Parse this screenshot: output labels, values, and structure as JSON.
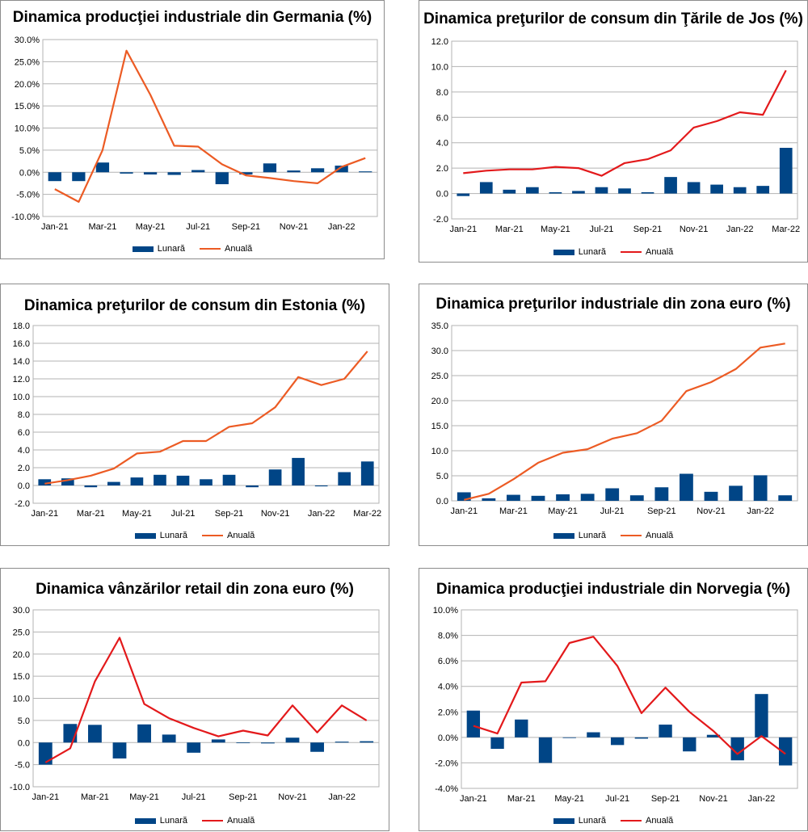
{
  "chart_data": [
    {
      "type": "bar+line",
      "title": "Dinamica producţiei industriale din Germania (%)",
      "percent": true,
      "ylim": [
        -10,
        30
      ],
      "ystep": 5,
      "ytick_decimals": 1,
      "categories": [
        "Jan-21",
        "Feb-21",
        "Mar-21",
        "Apr-21",
        "May-21",
        "Jun-21",
        "Jul-21",
        "Aug-21",
        "Sep-21",
        "Oct-21",
        "Nov-21",
        "Dec-21",
        "Jan-22",
        "Feb-22"
      ],
      "xtick_labels": [
        "Jan-21",
        "Mar-21",
        "May-21",
        "Jul-21",
        "Sep-21",
        "Nov-21",
        "Jan-22"
      ],
      "series": [
        {
          "name": "Lunară",
          "kind": "bar",
          "color": "#004586",
          "values": [
            -2.0,
            -2.0,
            2.2,
            -0.3,
            -0.5,
            -0.6,
            0.5,
            -2.7,
            -0.5,
            2.0,
            0.4,
            0.9,
            1.5,
            0.2
          ]
        },
        {
          "name": "Anuală",
          "kind": "line",
          "color": "#ec5b24",
          "values": [
            -3.8,
            -6.7,
            5.0,
            27.5,
            17.5,
            6.0,
            5.8,
            1.8,
            -0.7,
            -1.3,
            -2.0,
            -2.5,
            1.2,
            3.2
          ]
        }
      ]
    },
    {
      "type": "bar+line",
      "title": "Dinamica preţurilor de consum din Ţările de Jos (%)",
      "percent": false,
      "ylim": [
        -2,
        12
      ],
      "ystep": 2,
      "ytick_decimals": 1,
      "categories": [
        "Jan-21",
        "Feb-21",
        "Mar-21",
        "Apr-21",
        "May-21",
        "Jun-21",
        "Jul-21",
        "Aug-21",
        "Sep-21",
        "Oct-21",
        "Nov-21",
        "Dec-21",
        "Jan-22",
        "Feb-22",
        "Mar-22"
      ],
      "xtick_labels": [
        "Jan-21",
        "Mar-21",
        "May-21",
        "Jul-21",
        "Sep-21",
        "Nov-21",
        "Jan-22",
        "Mar-22"
      ],
      "series": [
        {
          "name": "Lunară",
          "kind": "bar",
          "color": "#004586",
          "values": [
            -0.2,
            0.9,
            0.3,
            0.5,
            0.1,
            0.2,
            0.5,
            0.4,
            0.1,
            1.3,
            0.9,
            0.7,
            0.5,
            0.6,
            3.6
          ]
        },
        {
          "name": "Anuală",
          "kind": "line",
          "color": "#e3191b",
          "values": [
            1.6,
            1.8,
            1.9,
            1.9,
            2.1,
            2.0,
            1.4,
            2.4,
            2.7,
            3.4,
            5.2,
            5.7,
            6.4,
            6.2,
            9.7
          ]
        }
      ]
    },
    {
      "type": "bar+line",
      "title": "Dinamica preţurilor de consum din Estonia (%)",
      "percent": false,
      "ylim": [
        -2,
        18
      ],
      "ystep": 2,
      "ytick_decimals": 1,
      "categories": [
        "Jan-21",
        "Feb-21",
        "Mar-21",
        "Apr-21",
        "May-21",
        "Jun-21",
        "Jul-21",
        "Aug-21",
        "Sep-21",
        "Oct-21",
        "Nov-21",
        "Dec-21",
        "Jan-22",
        "Feb-22",
        "Mar-22"
      ],
      "xtick_labels": [
        "Jan-21",
        "Mar-21",
        "May-21",
        "Jul-21",
        "Sep-21",
        "Nov-21",
        "Jan-22",
        "Mar-22"
      ],
      "series": [
        {
          "name": "Lunară",
          "kind": "bar",
          "color": "#004586",
          "values": [
            0.7,
            0.8,
            -0.2,
            0.4,
            0.9,
            1.2,
            1.1,
            0.7,
            1.2,
            -0.2,
            1.8,
            3.1,
            -0.1,
            1.5,
            2.7
          ]
        },
        {
          "name": "Anuală",
          "kind": "line",
          "color": "#ec5b24",
          "values": [
            0.2,
            0.6,
            1.1,
            1.9,
            3.6,
            3.8,
            5.0,
            5.0,
            6.6,
            7.0,
            8.8,
            12.2,
            11.3,
            12.0,
            15.1
          ]
        }
      ]
    },
    {
      "type": "bar+line",
      "title": "Dinamica preţurilor industriale din zona euro (%)",
      "percent": false,
      "ylim": [
        0,
        35
      ],
      "ystep": 5,
      "ytick_decimals": 1,
      "categories": [
        "Jan-21",
        "Feb-21",
        "Mar-21",
        "Apr-21",
        "May-21",
        "Jun-21",
        "Jul-21",
        "Aug-21",
        "Sep-21",
        "Oct-21",
        "Nov-21",
        "Dec-21",
        "Jan-22",
        "Feb-22"
      ],
      "xtick_labels": [
        "Jan-21",
        "Mar-21",
        "May-21",
        "Jul-21",
        "Sep-21",
        "Nov-21",
        "Jan-22"
      ],
      "series": [
        {
          "name": "Lunară",
          "kind": "bar",
          "color": "#004586",
          "values": [
            1.7,
            0.5,
            1.2,
            1.0,
            1.3,
            1.4,
            2.5,
            1.1,
            2.7,
            5.4,
            1.8,
            3.0,
            5.1,
            1.1
          ]
        },
        {
          "name": "Anuală",
          "kind": "line",
          "color": "#ec5b24",
          "values": [
            0.2,
            1.4,
            4.3,
            7.6,
            9.6,
            10.3,
            12.4,
            13.5,
            16.0,
            21.9,
            23.7,
            26.3,
            30.6,
            31.4
          ]
        }
      ]
    },
    {
      "type": "bar+line",
      "title": "Dinamica vânzărilor retail din zona euro (%)",
      "percent": false,
      "ylim": [
        -10,
        30
      ],
      "ystep": 5,
      "ytick_decimals": 1,
      "categories": [
        "Jan-21",
        "Feb-21",
        "Mar-21",
        "Apr-21",
        "May-21",
        "Jun-21",
        "Jul-21",
        "Aug-21",
        "Sep-21",
        "Oct-21",
        "Nov-21",
        "Dec-21",
        "Jan-22",
        "Feb-22"
      ],
      "xtick_labels": [
        "Jan-21",
        "Mar-21",
        "May-21",
        "Jul-21",
        "Sep-21",
        "Nov-21",
        "Jan-22"
      ],
      "series": [
        {
          "name": "Lunară",
          "kind": "bar",
          "color": "#004586",
          "values": [
            -5.0,
            4.2,
            4.0,
            -3.6,
            4.1,
            1.8,
            -2.3,
            0.7,
            -0.1,
            -0.2,
            1.1,
            -2.1,
            0.2,
            0.3
          ]
        },
        {
          "name": "Anuală",
          "kind": "line",
          "color": "#e3191b",
          "values": [
            -4.5,
            -1.3,
            13.8,
            23.7,
            8.7,
            5.5,
            3.3,
            1.4,
            2.7,
            1.6,
            8.4,
            2.3,
            8.4,
            5.0
          ]
        }
      ]
    },
    {
      "type": "bar+line",
      "title": "Dinamica producţiei industriale din Norvegia (%)",
      "percent": true,
      "ylim": [
        -4,
        10
      ],
      "ystep": 2,
      "ytick_decimals": 1,
      "categories": [
        "Jan-21",
        "Feb-21",
        "Mar-21",
        "Apr-21",
        "May-21",
        "Jun-21",
        "Jul-21",
        "Aug-21",
        "Sep-21",
        "Oct-21",
        "Nov-21",
        "Dec-21",
        "Jan-22",
        "Feb-22"
      ],
      "xtick_labels": [
        "Jan-21",
        "Mar-21",
        "May-21",
        "Jul-21",
        "Sep-21",
        "Nov-21",
        "Jan-22"
      ],
      "series": [
        {
          "name": "Lunară",
          "kind": "bar",
          "color": "#004586",
          "values": [
            2.1,
            -0.9,
            1.4,
            -2.0,
            0.0,
            0.4,
            -0.6,
            -0.1,
            1.0,
            -1.1,
            0.2,
            -1.8,
            3.4,
            -2.2
          ]
        },
        {
          "name": "Anuală",
          "kind": "line",
          "color": "#e3191b",
          "values": [
            0.9,
            0.3,
            4.3,
            4.4,
            7.4,
            7.9,
            5.6,
            1.9,
            3.9,
            2.0,
            0.5,
            -1.3,
            0.1,
            -1.3
          ]
        }
      ]
    }
  ]
}
